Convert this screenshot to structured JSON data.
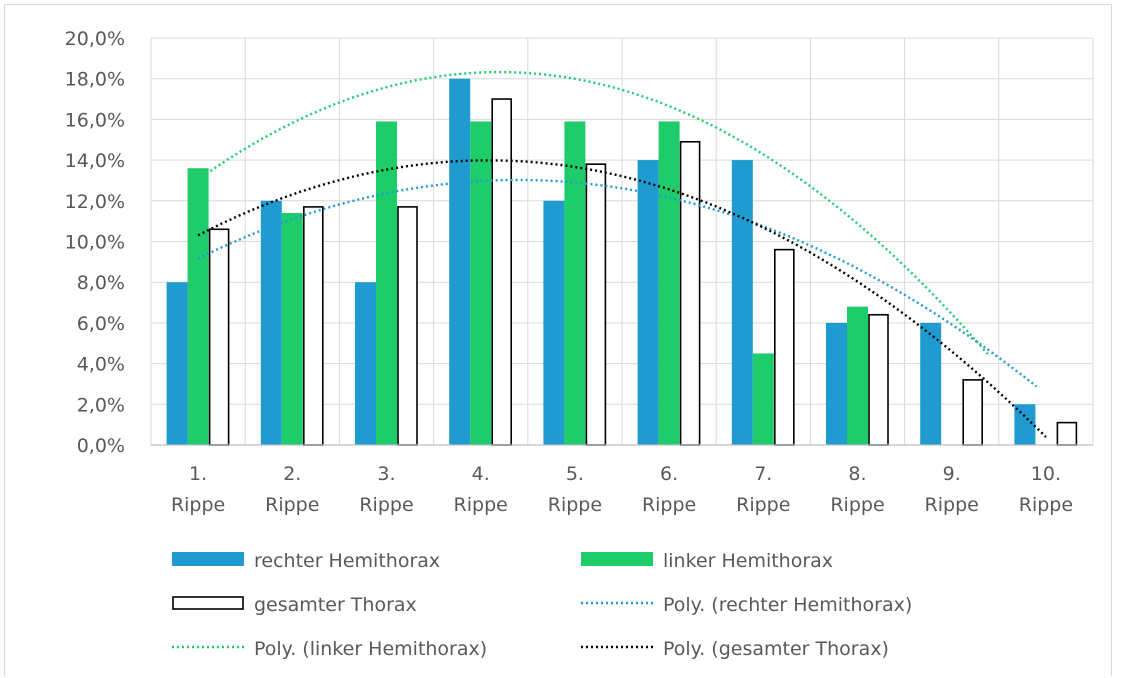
{
  "chart_data": {
    "type": "bar",
    "title": "",
    "xlabel": "",
    "ylabel": "",
    "categories": [
      [
        "1.",
        "Rippe"
      ],
      [
        "2.",
        "Rippe"
      ],
      [
        "3.",
        "Rippe"
      ],
      [
        "4.",
        "Rippe"
      ],
      [
        "5.",
        "Rippe"
      ],
      [
        "6.",
        "Rippe"
      ],
      [
        "7.",
        "Rippe"
      ],
      [
        "8.",
        "Rippe"
      ],
      [
        "9.",
        "Rippe"
      ],
      [
        "10.",
        "Rippe"
      ]
    ],
    "ylim": [
      0,
      20
    ],
    "ytick_step": 2,
    "ytick_format": "percent_comma_1",
    "grid": true,
    "legend_position": "bottom",
    "series": [
      {
        "name": "rechter Hemithorax",
        "color": "#1f9bd0",
        "style": "filled",
        "values": [
          8.0,
          12.0,
          8.0,
          18.0,
          12.0,
          14.0,
          14.0,
          6.0,
          6.0,
          2.0
        ]
      },
      {
        "name": "linker Hemithorax",
        "color": "#1ecc6a",
        "style": "filled",
        "values": [
          13.6,
          11.4,
          15.9,
          15.9,
          15.9,
          15.9,
          4.5,
          6.8,
          0.0,
          0.0
        ]
      },
      {
        "name": "gesamter Thorax",
        "color": "#000000",
        "style": "outline",
        "values": [
          10.6,
          11.7,
          11.7,
          17.0,
          13.8,
          14.9,
          9.6,
          6.4,
          3.2,
          1.1
        ]
      }
    ],
    "trendlines": [
      {
        "name": "Poly. (rechter Hemithorax)",
        "color": "#1f9bd0",
        "x_range": [
          1,
          9.9
        ],
        "coefficients": [
          6.55,
          2.945,
          -0.335
        ]
      },
      {
        "name": "Poly. (linker Hemithorax)",
        "color": "#1ecc6a",
        "x_range": [
          1,
          9.4
        ],
        "coefficients": [
          9.22,
          4.335,
          -0.516
        ]
      },
      {
        "name": "Poly. (gesamter Thorax)",
        "color": "#000000",
        "x_range": [
          1,
          10.0
        ],
        "coefficients": [
          7.525,
          3.167,
          -0.388
        ]
      }
    ],
    "legend": [
      {
        "label": "rechter Hemithorax",
        "kind": "bar",
        "series": 0
      },
      {
        "label": "linker Hemithorax",
        "kind": "bar",
        "series": 1
      },
      {
        "label": "gesamter Thorax",
        "kind": "bar-outline",
        "series": 2
      },
      {
        "label": "Poly. (rechter Hemithorax)",
        "kind": "dotted",
        "series": 0
      },
      {
        "label": "Poly. (linker Hemithorax)",
        "kind": "dotted",
        "series": 1
      },
      {
        "label": "Poly. (gesamter Thorax)",
        "kind": "dotted",
        "series": 2
      }
    ]
  }
}
